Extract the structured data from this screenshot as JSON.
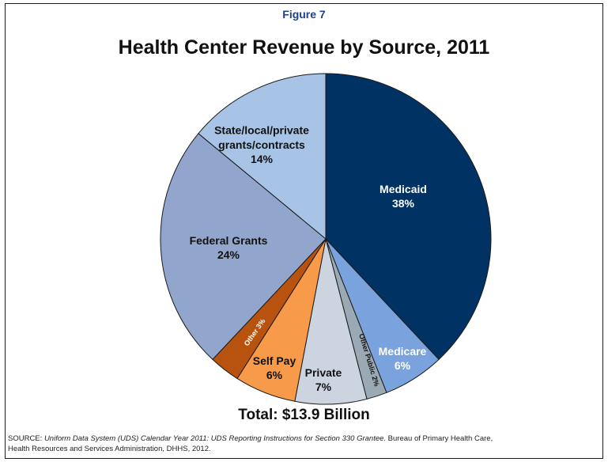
{
  "figure_label": "Figure 7",
  "chart_data": {
    "type": "pie",
    "title": "Health Center Revenue by Source, 2011",
    "total_label": "Total: $13.9 Billion",
    "start_angle_deg": 0,
    "direction": "clockwise",
    "slices": [
      {
        "name": "Medicaid",
        "lines": [
          "Medicaid",
          "38%"
        ],
        "value": 38,
        "color": "#003263"
      },
      {
        "name": "Medicare",
        "lines": [
          "Medicare",
          "6%"
        ],
        "value": 6,
        "color": "#7aa2dd"
      },
      {
        "name": "Other Public",
        "lines": [
          "Other Public 2%"
        ],
        "value": 2,
        "color": "#9aa9b3"
      },
      {
        "name": "Private",
        "lines": [
          "Private",
          "7%"
        ],
        "value": 7,
        "color": "#ccd5df"
      },
      {
        "name": "Self Pay",
        "lines": [
          "Self Pay",
          "6%"
        ],
        "value": 6,
        "color": "#f79a4a"
      },
      {
        "name": "Other",
        "lines": [
          "Other 3%"
        ],
        "value": 3,
        "color": "#b7520f"
      },
      {
        "name": "Federal Grants",
        "lines": [
          "Federal Grants",
          "24%"
        ],
        "value": 24,
        "color": "#91a5cd"
      },
      {
        "name": "State/local/private grants/contracts",
        "lines": [
          "State/local/private",
          "grants/contracts",
          "14%"
        ],
        "value": 14,
        "color": "#a7c3e6"
      }
    ]
  },
  "source": {
    "prefix": "SOURCE: ",
    "italic": "Uniform Data System (UDS) Calendar Year 2011: UDS Reporting Instructions for Section 330 Grantee.",
    "rest": " Bureau of Primary Health Care,",
    "line2": "Health Resources and Services Administration, DHHS, 2012."
  }
}
